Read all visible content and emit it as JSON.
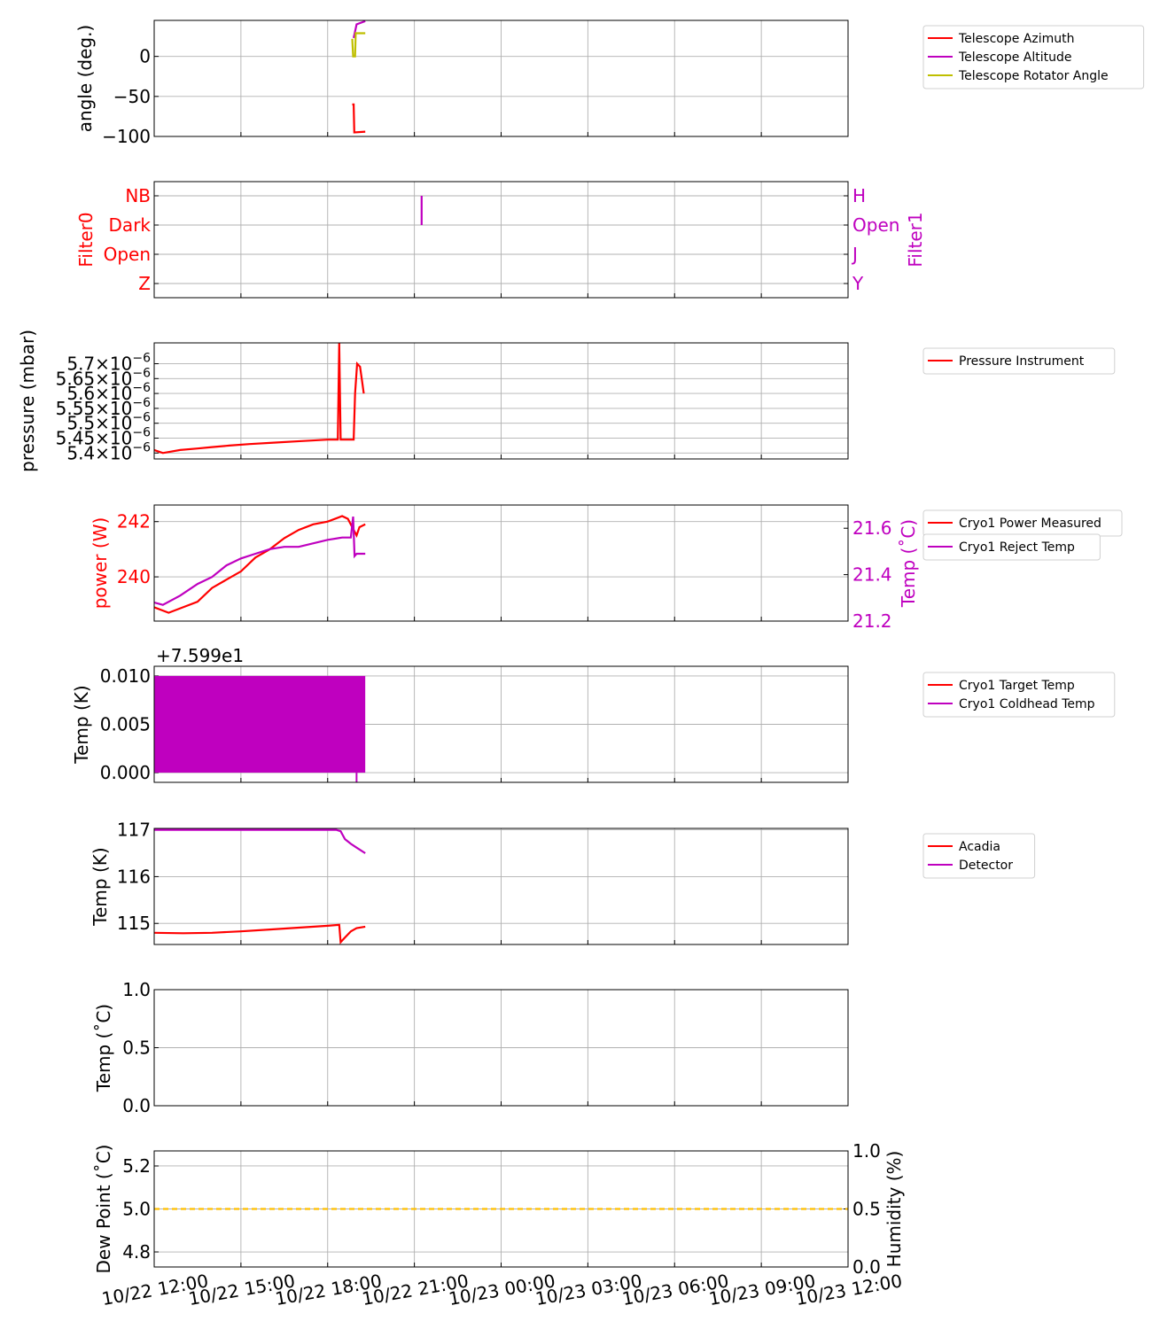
{
  "figure": {
    "x_tick_labels": [
      "10/22 12:00",
      "10/22 15:00",
      "10/22 18:00",
      "10/22 21:00",
      "10/23 00:00",
      "10/23 03:00",
      "10/23 06:00",
      "10/23 09:00",
      "10/23 12:00"
    ],
    "x_range_hours": [
      0,
      24
    ]
  },
  "chart_data": [
    {
      "id": "angles",
      "type": "line",
      "ylabel": "angle (deg.)",
      "ylim": [
        -100,
        45
      ],
      "yticks": [
        {
          "v": 0,
          "label": "0"
        },
        {
          "v": -50,
          "label": "−50"
        },
        {
          "v": -100,
          "label": "−100"
        }
      ],
      "series": [
        {
          "name": "Telescope Azimuth",
          "color": "#ff0000",
          "points": [
            [
              6.85,
              -60
            ],
            [
              6.9,
              -60
            ],
            [
              6.92,
              -95
            ],
            [
              7.3,
              -94
            ]
          ]
        },
        {
          "name": "Telescope Altitude",
          "color": "#bf00bf",
          "points": [
            [
              6.9,
              23
            ],
            [
              7.0,
              40
            ],
            [
              7.3,
              44
            ]
          ]
        },
        {
          "name": "Telescope Rotator Angle",
          "color": "#bfbf00",
          "points": [
            [
              6.85,
              22
            ],
            [
              6.88,
              0
            ],
            [
              6.95,
              0
            ],
            [
              6.97,
              29
            ],
            [
              7.3,
              29
            ]
          ]
        }
      ],
      "legend": [
        "Telescope Azimuth",
        "Telescope Altitude",
        "Telescope Rotator Angle"
      ]
    },
    {
      "id": "filters",
      "type": "line",
      "ylabel_left": "Filter0",
      "ylabel_right": "Filter1",
      "left_color": "#ff0000",
      "right_color": "#bf00bf",
      "levels": 4,
      "yticks_left": [
        "NB",
        "Dark",
        "Open",
        "Z"
      ],
      "yticks_right": [
        "H",
        "Open",
        "J",
        "Y"
      ],
      "series": [
        {
          "name": "Filter1",
          "color": "#bf00bf",
          "points": [
            [
              9.25,
              3
            ],
            [
              9.25,
              2
            ]
          ]
        }
      ]
    },
    {
      "id": "pressure",
      "type": "line",
      "ylabel": "pressure (mbar)",
      "ylim": [
        5.38,
        5.77
      ],
      "ytick_values": [
        5.4,
        5.45,
        5.5,
        5.55,
        5.6,
        5.65,
        5.7
      ],
      "ytick_mantissas": [
        "5.4",
        "5.45",
        "5.5",
        "5.55",
        "5.6",
        "5.65",
        "5.7"
      ],
      "ytick_base": "10",
      "ytick_exponent": "−6",
      "ytick_times": "×",
      "series": [
        {
          "name": "Pressure Instrument",
          "color": "#ff0000",
          "points": [
            [
              0,
              5.41
            ],
            [
              0.3,
              5.4
            ],
            [
              0.9,
              5.41
            ],
            [
              1.5,
              5.415
            ],
            [
              2.0,
              5.42
            ],
            [
              2.6,
              5.425
            ],
            [
              3.3,
              5.43
            ],
            [
              4.2,
              5.435
            ],
            [
              5.1,
              5.44
            ],
            [
              6.0,
              5.445
            ],
            [
              6.35,
              5.445
            ],
            [
              6.4,
              5.77
            ],
            [
              6.45,
              5.445
            ],
            [
              6.85,
              5.445
            ],
            [
              6.9,
              5.445
            ],
            [
              6.95,
              5.6
            ],
            [
              7.02,
              5.7
            ],
            [
              7.12,
              5.69
            ],
            [
              7.18,
              5.65
            ],
            [
              7.25,
              5.6
            ]
          ]
        }
      ],
      "legend": [
        "Pressure Instrument"
      ]
    },
    {
      "id": "cryo_power",
      "type": "line",
      "ylabel_left": "power (W)",
      "ylabel_right": "Temp (˚C)",
      "left_color": "#ff0000",
      "right_color": "#bf00bf",
      "ylim_left": [
        238.4,
        242.6
      ],
      "ylim_right": [
        21.2,
        21.7
      ],
      "yticks_left": [
        {
          "v": 242,
          "label": "242"
        },
        {
          "v": 240,
          "label": "240"
        }
      ],
      "yticks_right": [
        {
          "v": 21.6,
          "label": "21.6"
        },
        {
          "v": 21.4,
          "label": "21.4"
        },
        {
          "v": 21.2,
          "label": "21.2"
        }
      ],
      "series": [
        {
          "name": "Cryo1 Power Measured",
          "color": "#ff0000",
          "axis": "left",
          "points": [
            [
              0,
              238.9
            ],
            [
              0.5,
              238.7
            ],
            [
              1.0,
              238.9
            ],
            [
              1.5,
              239.1
            ],
            [
              2.0,
              239.6
            ],
            [
              2.5,
              239.9
            ],
            [
              3.0,
              240.2
            ],
            [
              3.5,
              240.7
            ],
            [
              4.0,
              241.0
            ],
            [
              4.5,
              241.4
            ],
            [
              5.0,
              241.7
            ],
            [
              5.5,
              241.9
            ],
            [
              6.0,
              242.0
            ],
            [
              6.5,
              242.2
            ],
            [
              6.7,
              242.1
            ],
            [
              6.9,
              241.7
            ],
            [
              7.0,
              241.5
            ],
            [
              7.1,
              241.8
            ],
            [
              7.3,
              241.9
            ]
          ]
        },
        {
          "name": "Cryo1 Reject Temp",
          "color": "#bf00bf",
          "axis": "right",
          "points": [
            [
              0,
              21.28
            ],
            [
              0.3,
              21.27
            ],
            [
              0.9,
              21.31
            ],
            [
              1.5,
              21.36
            ],
            [
              2.0,
              21.39
            ],
            [
              2.5,
              21.44
            ],
            [
              3.0,
              21.47
            ],
            [
              3.5,
              21.49
            ],
            [
              4.0,
              21.51
            ],
            [
              4.5,
              21.52
            ],
            [
              5.0,
              21.52
            ],
            [
              6.0,
              21.55
            ],
            [
              6.5,
              21.56
            ],
            [
              6.8,
              21.56
            ],
            [
              6.88,
              21.65
            ],
            [
              6.93,
              21.48
            ],
            [
              7.0,
              21.49
            ],
            [
              7.3,
              21.49
            ]
          ]
        }
      ],
      "legend": [
        "Cryo1 Power Measured",
        "Cryo1 Reject Temp"
      ]
    },
    {
      "id": "cryo_temps",
      "type": "area",
      "ylabel": "Temp (K)",
      "offset_text": "+7.599e1",
      "ylim": [
        -0.001,
        0.011
      ],
      "yticks": [
        {
          "v": 0.01,
          "label": "0.010"
        },
        {
          "v": 0.005,
          "label": "0.005"
        },
        {
          "v": 0.0,
          "label": "0.000"
        }
      ],
      "series": [
        {
          "name": "Cryo1 Target Temp",
          "color": "#ff0000",
          "points": []
        },
        {
          "name": "Cryo1 Coldhead Temp",
          "color": "#bf00bf",
          "band": [
            0,
            7.3,
            0.0,
            0.01
          ],
          "dip": [
            7.0,
            -0.001
          ]
        }
      ],
      "legend": [
        "Cryo1 Target Temp",
        "Cryo1 Coldhead Temp"
      ]
    },
    {
      "id": "detector_temps",
      "type": "line",
      "ylabel": "Temp (K)",
      "ylim": [
        114.55,
        117.03
      ],
      "yticks": [
        {
          "v": 117,
          "label": "117"
        },
        {
          "v": 116,
          "label": "116"
        },
        {
          "v": 115,
          "label": "115"
        }
      ],
      "series": [
        {
          "name": "Acadia",
          "color": "#ff0000",
          "points": [
            [
              0,
              114.8
            ],
            [
              1.0,
              114.79
            ],
            [
              2.0,
              114.8
            ],
            [
              3.0,
              114.83
            ],
            [
              4.0,
              114.87
            ],
            [
              5.0,
              114.91
            ],
            [
              6.0,
              114.95
            ],
            [
              6.4,
              114.97
            ],
            [
              6.45,
              114.6
            ],
            [
              6.6,
              114.7
            ],
            [
              6.8,
              114.83
            ],
            [
              7.0,
              114.9
            ],
            [
              7.3,
              114.93
            ]
          ]
        },
        {
          "name": "Detector",
          "color": "#bf00bf",
          "points": [
            [
              0,
              117.0
            ],
            [
              3.0,
              117.0
            ],
            [
              6.3,
              117.0
            ],
            [
              6.45,
              116.97
            ],
            [
              6.6,
              116.8
            ],
            [
              6.8,
              116.7
            ],
            [
              7.0,
              116.62
            ],
            [
              7.3,
              116.5
            ]
          ]
        }
      ],
      "legend": [
        "Acadia",
        "Detector"
      ]
    },
    {
      "id": "empty_temp",
      "type": "line",
      "ylabel": "Temp (˚C)",
      "ylim": [
        0,
        1
      ],
      "yticks": [
        {
          "v": 1.0,
          "label": "1.0"
        },
        {
          "v": 0.5,
          "label": "0.5"
        },
        {
          "v": 0.0,
          "label": "0.0"
        }
      ],
      "series": []
    },
    {
      "id": "weather",
      "type": "line",
      "ylabel_left": "Dew Point (˚C)",
      "ylabel_right": "Humidity (%)",
      "ylim_left": [
        4.73,
        5.27
      ],
      "ylim_right": [
        0,
        1
      ],
      "yticks_left": [
        {
          "v": 5.2,
          "label": "5.2"
        },
        {
          "v": 5.0,
          "label": "5.0"
        },
        {
          "v": 4.8,
          "label": "4.8"
        }
      ],
      "yticks_right": [
        {
          "v": 1.0,
          "label": "1.0"
        },
        {
          "v": 0.5,
          "label": "0.5"
        },
        {
          "v": 0.0,
          "label": "0.0"
        }
      ],
      "series": [
        {
          "name": "Humidity",
          "color": "#ffbf00",
          "axis": "right",
          "dashed": true,
          "points": [
            [
              0,
              0.5
            ],
            [
              24,
              0.5
            ]
          ]
        }
      ]
    }
  ]
}
